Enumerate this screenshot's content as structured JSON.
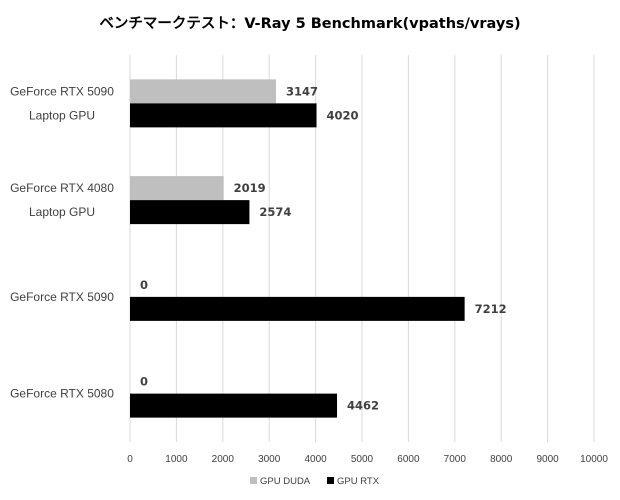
{
  "chart_data": {
    "type": "bar",
    "orientation": "horizontal",
    "title": "ベンチマークテスト：V-Ray 5 Benchmark(vpaths/vrays)",
    "categories": [
      [
        "GeForce RTX 5090",
        "Laptop GPU"
      ],
      [
        "GeForce RTX 4080",
        "Laptop GPU"
      ],
      [
        "GeForce RTX 5090"
      ],
      [
        "GeForce RTX 5080"
      ]
    ],
    "series": [
      {
        "name": "GPU DUDA",
        "color": "#bfbfbf",
        "values": [
          3147,
          2019,
          0,
          0
        ]
      },
      {
        "name": "GPU RTX",
        "color": "#000000",
        "values": [
          4020,
          2574,
          7212,
          4462
        ]
      }
    ],
    "xlim": [
      0,
      10000
    ],
    "ticks": [
      0,
      1000,
      2000,
      3000,
      4000,
      5000,
      6000,
      7000,
      8000,
      9000,
      10000
    ],
    "grid": true,
    "data_labels": true,
    "legend_position": "bottom"
  }
}
